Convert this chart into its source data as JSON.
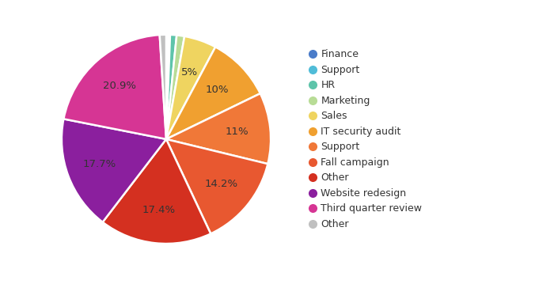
{
  "labels": [
    "Finance",
    "Support",
    "HR",
    "Marketing",
    "Sales",
    "IT security audit",
    "Support",
    "Fall campaign",
    "Other",
    "Website redesign",
    "Third quarter review",
    "Other"
  ],
  "values": [
    0.3,
    0.3,
    1.0,
    1.2,
    5.0,
    10.0,
    11.0,
    14.2,
    17.4,
    17.7,
    20.9,
    1.0
  ],
  "colors": [
    "#4a7cc9",
    "#50bcd8",
    "#5ec4aa",
    "#b8dc96",
    "#efd460",
    "#f0a030",
    "#f07838",
    "#e85830",
    "#d43020",
    "#8b1f9e",
    "#d63594",
    "#c0c0c0"
  ],
  "autopct_labels": [
    "",
    "",
    "",
    "",
    "5%",
    "10%",
    "11%",
    "14.2%",
    "17.4%",
    "17.7%",
    "20.9%",
    ""
  ],
  "legend_labels": [
    "Finance",
    "Support",
    "HR",
    "Marketing",
    "Sales",
    "IT security audit",
    "Support",
    "Fall campaign",
    "Other",
    "Website redesign",
    "Third quarter review",
    "Other"
  ],
  "startangle": 90,
  "counterclock": false,
  "background_color": "#ffffff",
  "text_color": "#333333",
  "label_fontsize": 9.5,
  "legend_fontsize": 9.0
}
